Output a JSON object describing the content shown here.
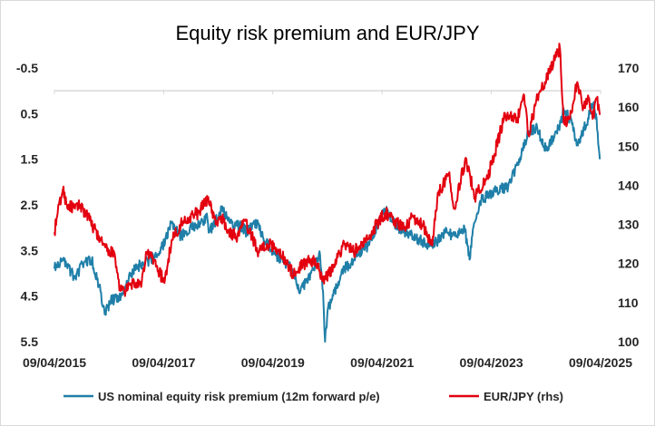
{
  "chart_data": {
    "type": "line",
    "title": "Equity risk premium and EUR/JPY",
    "x_tick_labels": [
      "09/04/2015",
      "09/04/2017",
      "09/04/2019",
      "09/04/2021",
      "09/04/2023",
      "09/04/2025"
    ],
    "xlim": [
      "2015-04-09",
      "2025-04-09"
    ],
    "y_left": {
      "tick_labels": [
        "-0.5",
        "0.5",
        "1.5",
        "2.5",
        "3.5",
        "4.5",
        "5.5"
      ],
      "ylim": [
        -0.5,
        5.5
      ],
      "inverted": true
    },
    "y_right": {
      "tick_labels": [
        "100",
        "110",
        "120",
        "130",
        "140",
        "150",
        "160",
        "170"
      ],
      "ylim": [
        100,
        170
      ]
    },
    "legend_position": "bottom",
    "series": [
      {
        "name": "US nominal equity risk premium (12m forward p/e)",
        "axis": "left",
        "color": "#1f7fa8",
        "points": [
          [
            "2015-04-09",
            3.9
          ],
          [
            "2015-06-01",
            3.7
          ],
          [
            "2015-08-24",
            4.1
          ],
          [
            "2015-10-15",
            3.8
          ],
          [
            "2015-12-15",
            3.7
          ],
          [
            "2016-02-11",
            4.4
          ],
          [
            "2016-03-10",
            4.9
          ],
          [
            "2016-04-20",
            4.6
          ],
          [
            "2016-06-27",
            4.5
          ],
          [
            "2016-09-01",
            4.0
          ],
          [
            "2016-11-09",
            3.8
          ],
          [
            "2017-01-15",
            3.7
          ],
          [
            "2017-04-01",
            3.4
          ],
          [
            "2017-06-01",
            2.9
          ],
          [
            "2017-08-01",
            3.2
          ],
          [
            "2017-10-01",
            3.0
          ],
          [
            "2018-01-26",
            2.8
          ],
          [
            "2018-02-08",
            3.1
          ],
          [
            "2018-03-15",
            2.9
          ],
          [
            "2018-05-01",
            2.6
          ],
          [
            "2018-07-01",
            2.9
          ],
          [
            "2018-09-21",
            3.0
          ],
          [
            "2018-10-15",
            3.1
          ],
          [
            "2018-12-24",
            2.9
          ],
          [
            "2019-02-01",
            3.2
          ],
          [
            "2019-05-01",
            3.6
          ],
          [
            "2019-08-15",
            3.9
          ],
          [
            "2019-10-10",
            4.4
          ],
          [
            "2019-12-20",
            4.0
          ],
          [
            "2020-02-19",
            3.6
          ],
          [
            "2020-03-10",
            4.4
          ],
          [
            "2020-03-23",
            5.5
          ],
          [
            "2020-04-10",
            4.8
          ],
          [
            "2020-06-08",
            4.3
          ],
          [
            "2020-08-01",
            3.9
          ],
          [
            "2020-10-01",
            3.7
          ],
          [
            "2021-01-01",
            3.4
          ],
          [
            "2021-03-01",
            3.0
          ],
          [
            "2021-05-01",
            2.6
          ],
          [
            "2021-07-01",
            2.9
          ],
          [
            "2021-09-01",
            3.1
          ],
          [
            "2021-11-01",
            3.2
          ],
          [
            "2022-01-03",
            3.3
          ],
          [
            "2022-03-07",
            3.4
          ],
          [
            "2022-06-16",
            3.1
          ],
          [
            "2022-08-16",
            3.2
          ],
          [
            "2022-10-12",
            3.0
          ],
          [
            "2022-11-15",
            3.7
          ],
          [
            "2022-12-15",
            2.9
          ],
          [
            "2023-02-01",
            2.4
          ],
          [
            "2023-05-01",
            2.2
          ],
          [
            "2023-07-31",
            2.1
          ],
          [
            "2023-10-27",
            1.4
          ],
          [
            "2023-12-15",
            0.9
          ],
          [
            "2024-02-01",
            0.8
          ],
          [
            "2024-04-15",
            1.3
          ],
          [
            "2024-07-16",
            0.7
          ],
          [
            "2024-08-05",
            0.4
          ],
          [
            "2024-09-15",
            0.6
          ],
          [
            "2024-11-08",
            1.2
          ],
          [
            "2025-01-15",
            0.6
          ],
          [
            "2025-02-19",
            0.3
          ],
          [
            "2025-03-13",
            0.6
          ],
          [
            "2025-04-04",
            1.5
          ]
        ]
      },
      {
        "name": "EUR/JPY (rhs)",
        "axis": "right",
        "color": "#e3000f",
        "points": [
          [
            "2015-04-09",
            128
          ],
          [
            "2015-05-01",
            133
          ],
          [
            "2015-06-05",
            139
          ],
          [
            "2015-07-01",
            135
          ],
          [
            "2015-08-24",
            134
          ],
          [
            "2015-10-01",
            135
          ],
          [
            "2015-12-01",
            131
          ],
          [
            "2016-02-11",
            126
          ],
          [
            "2016-04-11",
            122
          ],
          [
            "2016-05-01",
            124
          ],
          [
            "2016-06-24",
            113
          ],
          [
            "2016-08-01",
            113
          ],
          [
            "2016-09-15",
            115
          ],
          [
            "2016-11-09",
            114
          ],
          [
            "2016-12-15",
            123
          ],
          [
            "2017-02-01",
            121
          ],
          [
            "2017-04-14",
            115
          ],
          [
            "2017-06-01",
            126
          ],
          [
            "2017-08-01",
            130
          ],
          [
            "2017-10-01",
            132
          ],
          [
            "2017-12-01",
            133
          ],
          [
            "2018-02-01",
            137
          ],
          [
            "2018-03-23",
            130
          ],
          [
            "2018-05-01",
            132
          ],
          [
            "2018-06-15",
            128
          ],
          [
            "2018-08-15",
            127
          ],
          [
            "2018-10-01",
            131
          ],
          [
            "2018-12-24",
            124
          ],
          [
            "2019-01-03",
            123
          ],
          [
            "2019-03-01",
            125
          ],
          [
            "2019-05-01",
            124
          ],
          [
            "2019-07-01",
            121
          ],
          [
            "2019-08-26",
            117
          ],
          [
            "2019-10-01",
            119
          ],
          [
            "2019-12-15",
            121
          ],
          [
            "2020-02-01",
            120
          ],
          [
            "2020-03-09",
            116
          ],
          [
            "2020-04-15",
            117
          ],
          [
            "2020-06-01",
            121
          ],
          [
            "2020-08-01",
            125
          ],
          [
            "2020-10-01",
            123
          ],
          [
            "2021-01-01",
            126
          ],
          [
            "2021-03-01",
            130
          ],
          [
            "2021-05-01",
            133
          ],
          [
            "2021-07-01",
            131
          ],
          [
            "2021-09-01",
            129
          ],
          [
            "2021-11-01",
            132
          ],
          [
            "2022-01-03",
            130
          ],
          [
            "2022-03-07",
            125
          ],
          [
            "2022-04-20",
            138
          ],
          [
            "2022-06-29",
            143
          ],
          [
            "2022-08-02",
            134
          ],
          [
            "2022-10-21",
            147
          ],
          [
            "2022-12-20",
            137
          ],
          [
            "2023-01-03",
            138
          ],
          [
            "2023-03-15",
            142
          ],
          [
            "2023-05-01",
            148
          ],
          [
            "2023-07-01",
            157
          ],
          [
            "2023-08-15",
            158
          ],
          [
            "2023-10-01",
            157
          ],
          [
            "2023-11-15",
            163
          ],
          [
            "2023-12-15",
            153
          ],
          [
            "2024-02-01",
            161
          ],
          [
            "2024-04-29",
            169
          ],
          [
            "2024-07-11",
            175
          ],
          [
            "2024-08-05",
            156
          ],
          [
            "2024-09-16",
            157
          ],
          [
            "2024-11-01",
            166
          ],
          [
            "2024-12-15",
            160
          ],
          [
            "2025-01-15",
            163
          ],
          [
            "2025-02-15",
            157
          ],
          [
            "2025-03-15",
            162
          ],
          [
            "2025-04-04",
            158
          ]
        ]
      }
    ]
  }
}
